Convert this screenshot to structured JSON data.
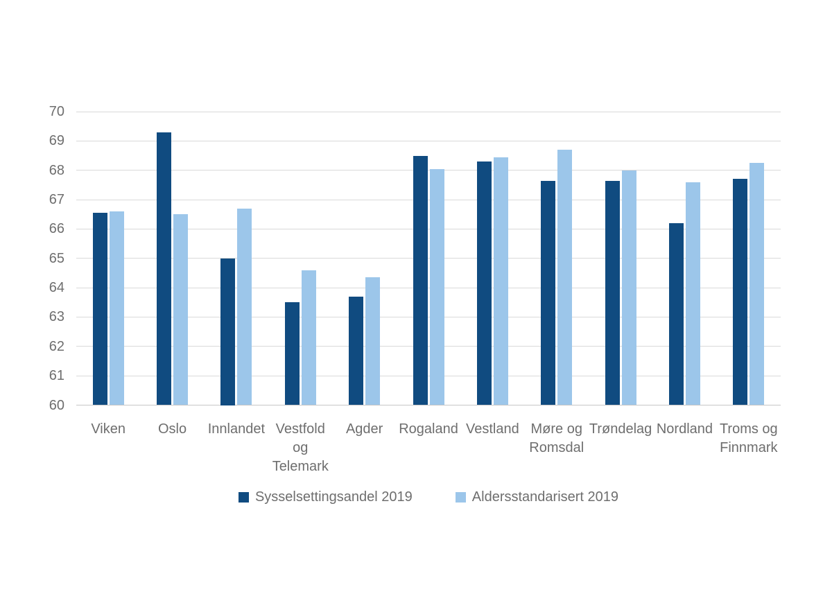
{
  "chart_data": {
    "type": "bar",
    "title": "",
    "categories": [
      "Viken",
      "Oslo",
      "Innlandet",
      "Vestfold og Telemark",
      "Agder",
      "Rogaland",
      "Vestland",
      "Møre og Romsdal",
      "Trøndelag",
      "Nordland",
      "Troms og Finnmark"
    ],
    "category_label_lines": [
      [
        "Viken"
      ],
      [
        "Oslo"
      ],
      [
        "Innlandet"
      ],
      [
        "Vestfold",
        "og",
        "Telemark"
      ],
      [
        "Agder"
      ],
      [
        "Rogaland"
      ],
      [
        "Vestland"
      ],
      [
        "Møre og",
        "Romsdal"
      ],
      [
        "Trøndelag"
      ],
      [
        "Nordland"
      ],
      [
        "Troms og",
        "Finnmark"
      ]
    ],
    "series": [
      {
        "name": "Sysselsettingsandel 2019",
        "color": "#104b80",
        "values": [
          66.55,
          69.3,
          65.0,
          63.5,
          63.7,
          68.5,
          68.3,
          67.65,
          67.65,
          66.2,
          67.7
        ]
      },
      {
        "name": "Aldersstandarisert 2019",
        "color": "#9cc6ea",
        "values": [
          66.6,
          66.5,
          66.7,
          64.6,
          64.35,
          68.05,
          68.45,
          68.7,
          68.0,
          67.6,
          68.25
        ]
      }
    ],
    "xlabel": "",
    "ylabel": "",
    "ylim": [
      60,
      70
    ],
    "yticks": [
      60,
      61,
      62,
      63,
      64,
      65,
      66,
      67,
      68,
      69,
      70
    ],
    "grid": true,
    "legend_position": "bottom"
  },
  "style": {
    "gridline_color": "#d9d9d9",
    "axis_line_color": "#c6c6c6",
    "text_color": "#6e6e6e",
    "background_color": "#ffffff"
  }
}
